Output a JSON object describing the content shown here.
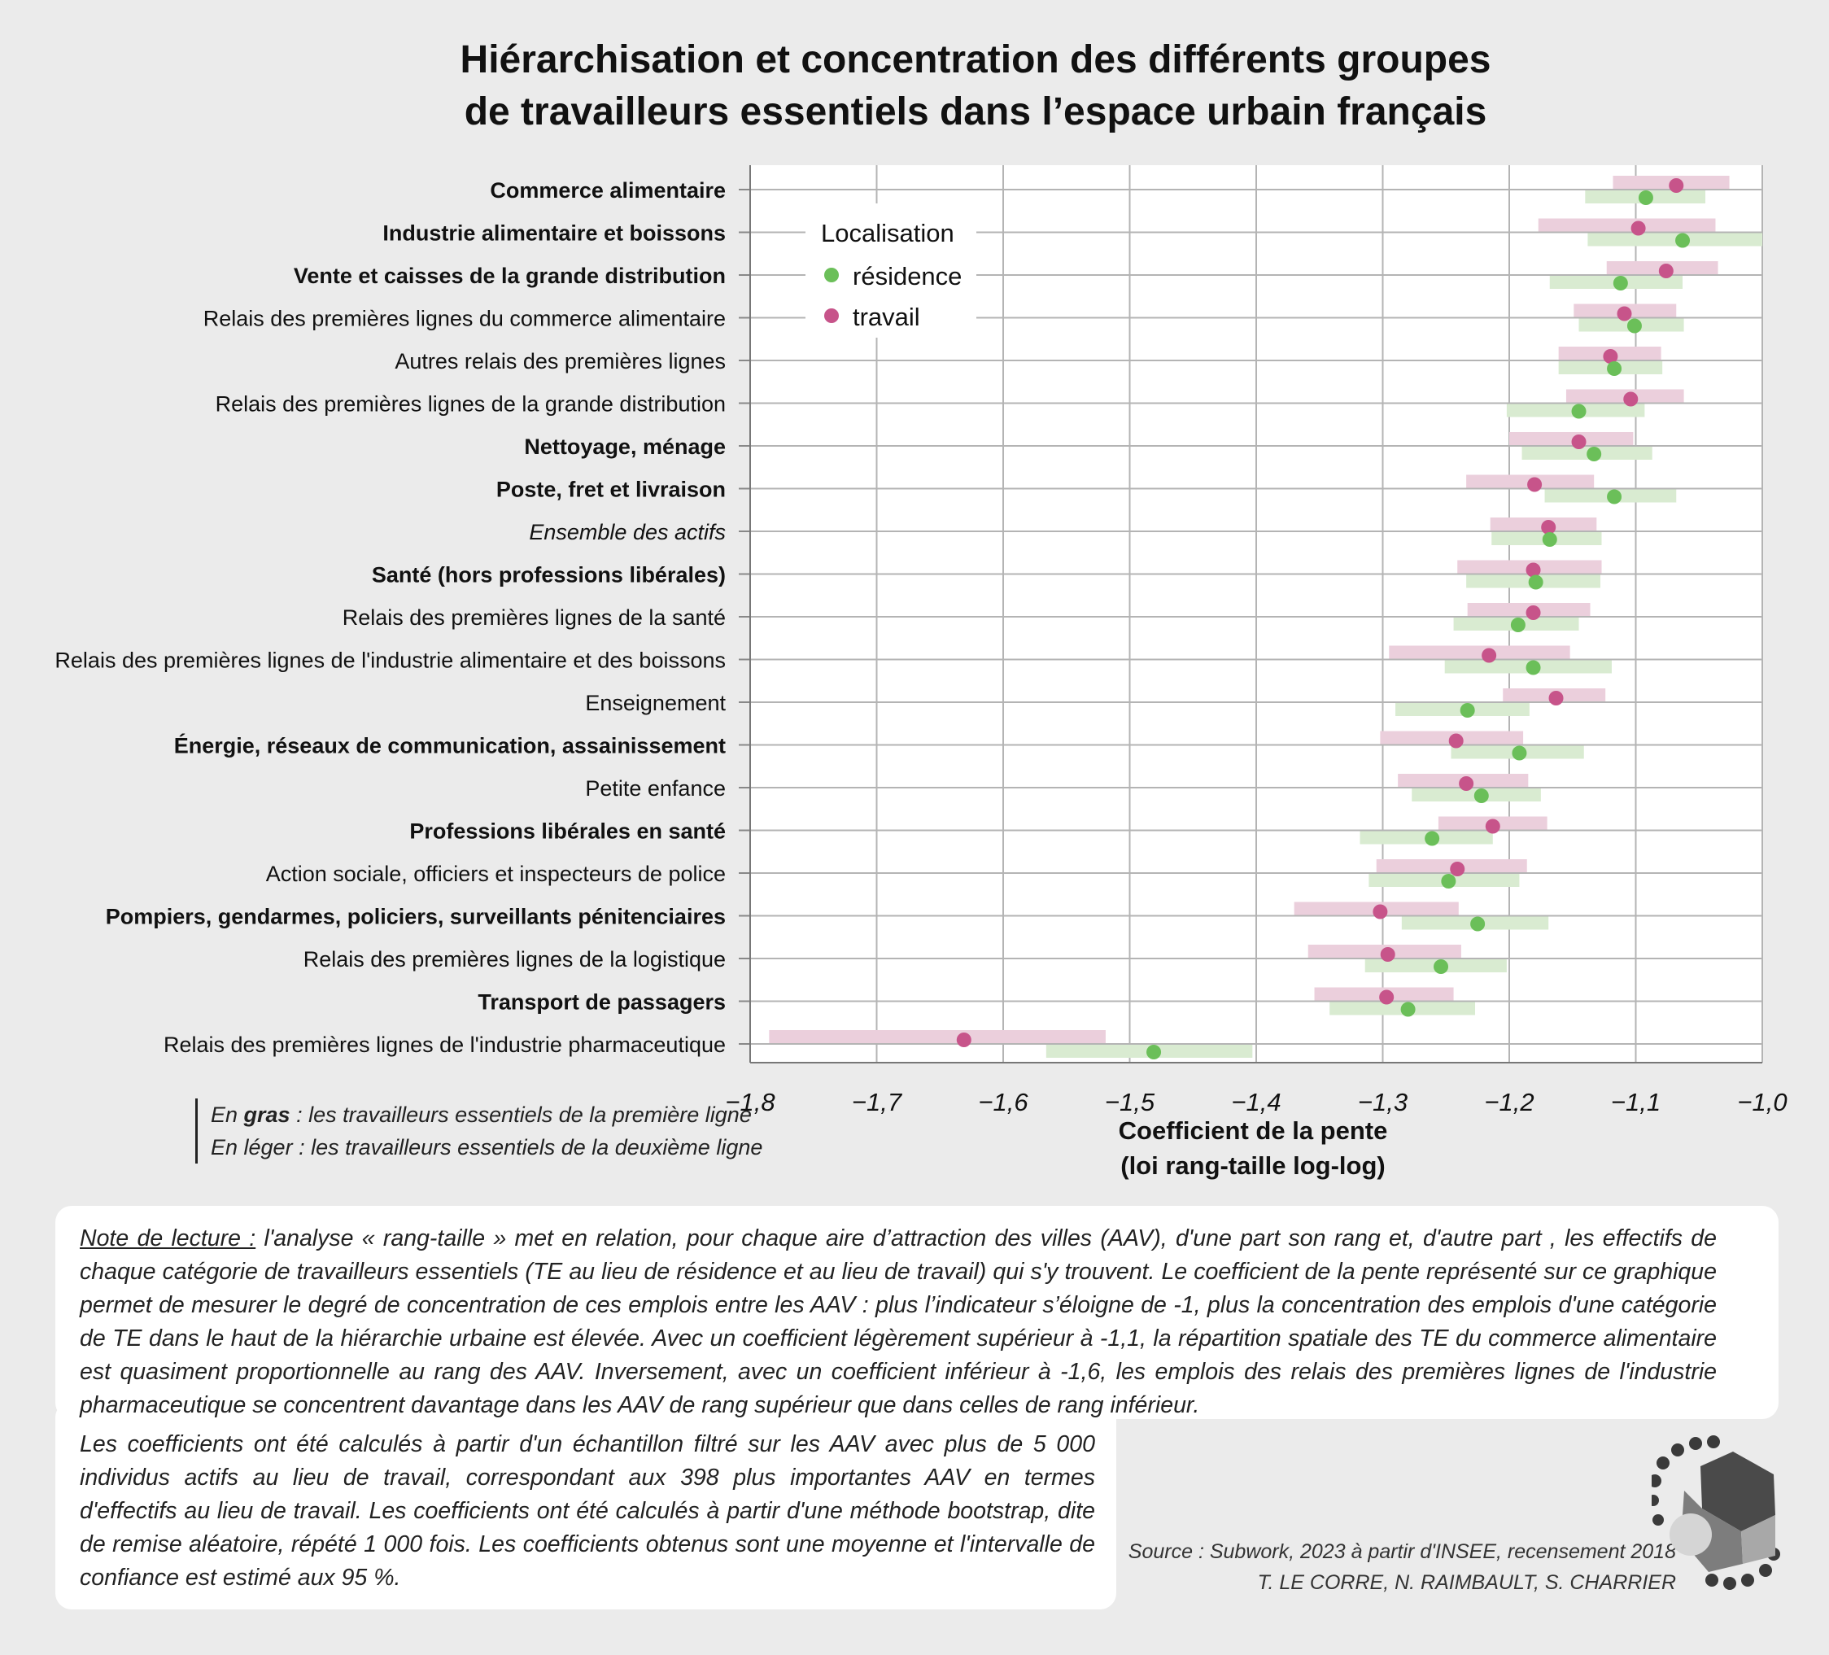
{
  "title": {
    "line1": "Hiérarchisation et concentration des différents groupes",
    "line2": "de travailleurs essentiels dans l’espace urbain français"
  },
  "legend": {
    "title": "Localisation",
    "items": [
      {
        "label": "résidence",
        "color": "#6bbf59"
      },
      {
        "label": "travail",
        "color": "#c7548a"
      }
    ]
  },
  "chart_data": {
    "type": "scatter",
    "title": "Hiérarchisation et concentration des différents groupes de travailleurs essentiels dans l’espace urbain français",
    "xlabel": "Coefficient de la pente (loi rang-taille log-log)",
    "xlabel_lines": [
      "Coefficient de la pente",
      "(loi rang-taille log-log)"
    ],
    "xlim": [
      -1.8,
      -1.0
    ],
    "xticks": [
      -1.8,
      -1.7,
      -1.6,
      -1.5,
      -1.4,
      -1.3,
      -1.2,
      -1.1,
      -1.0
    ],
    "xtick_labels": [
      "−1,8",
      "−1,7",
      "−1,6",
      "−1,5",
      "−1,4",
      "−1,3",
      "−1,2",
      "−1,1",
      "−1,0"
    ],
    "grid": true,
    "series": [
      {
        "name": "résidence",
        "color": "#6bbf59",
        "band_color": "#d9ebd1"
      },
      {
        "name": "travail",
        "color": "#c7548a",
        "band_color": "#ebcfdc"
      }
    ],
    "categories": [
      {
        "label": "Commerce alimentaire",
        "bold": true,
        "italic": false,
        "travail": {
          "mean": -1.068,
          "low": -1.118,
          "high": -1.026
        },
        "residence": {
          "mean": -1.092,
          "low": -1.14,
          "high": -1.045
        }
      },
      {
        "label": "Industrie alimentaire et boissons",
        "bold": true,
        "italic": false,
        "travail": {
          "mean": -1.098,
          "low": -1.177,
          "high": -1.037
        },
        "residence": {
          "mean": -1.063,
          "low": -1.138,
          "high": -1.0
        }
      },
      {
        "label": "Vente et caisses de la grande distribution",
        "bold": true,
        "italic": false,
        "travail": {
          "mean": -1.076,
          "low": -1.123,
          "high": -1.035
        },
        "residence": {
          "mean": -1.112,
          "low": -1.168,
          "high": -1.063
        }
      },
      {
        "label": "Relais des premières lignes du commerce alimentaire",
        "bold": false,
        "italic": false,
        "travail": {
          "mean": -1.109,
          "low": -1.149,
          "high": -1.068
        },
        "residence": {
          "mean": -1.101,
          "low": -1.145,
          "high": -1.062
        }
      },
      {
        "label": "Autres relais des premières lignes",
        "bold": false,
        "italic": false,
        "travail": {
          "mean": -1.12,
          "low": -1.161,
          "high": -1.08
        },
        "residence": {
          "mean": -1.117,
          "low": -1.161,
          "high": -1.079
        }
      },
      {
        "label": "Relais des premières lignes de la grande distribution",
        "bold": false,
        "italic": false,
        "travail": {
          "mean": -1.104,
          "low": -1.155,
          "high": -1.062
        },
        "residence": {
          "mean": -1.145,
          "low": -1.202,
          "high": -1.093
        }
      },
      {
        "label": "Nettoyage, ménage",
        "bold": true,
        "italic": false,
        "travail": {
          "mean": -1.145,
          "low": -1.2,
          "high": -1.102
        },
        "residence": {
          "mean": -1.133,
          "low": -1.19,
          "high": -1.087
        }
      },
      {
        "label": "Poste, fret et livraison",
        "bold": true,
        "italic": false,
        "travail": {
          "mean": -1.18,
          "low": -1.234,
          "high": -1.133
        },
        "residence": {
          "mean": -1.117,
          "low": -1.172,
          "high": -1.068
        }
      },
      {
        "label": "Ensemble des actifs",
        "bold": false,
        "italic": true,
        "travail": {
          "mean": -1.169,
          "low": -1.215,
          "high": -1.131
        },
        "residence": {
          "mean": -1.168,
          "low": -1.214,
          "high": -1.127
        }
      },
      {
        "label": "Santé (hors professions libérales)",
        "bold": true,
        "italic": false,
        "travail": {
          "mean": -1.181,
          "low": -1.241,
          "high": -1.127
        },
        "residence": {
          "mean": -1.179,
          "low": -1.234,
          "high": -1.128
        }
      },
      {
        "label": "Relais des premières lignes de la santé",
        "bold": false,
        "italic": false,
        "travail": {
          "mean": -1.181,
          "low": -1.233,
          "high": -1.136
        },
        "residence": {
          "mean": -1.193,
          "low": -1.244,
          "high": -1.145
        }
      },
      {
        "label": "Relais des premières lignes de l'industrie alimentaire et des boissons",
        "bold": false,
        "italic": false,
        "travail": {
          "mean": -1.216,
          "low": -1.295,
          "high": -1.152
        },
        "residence": {
          "mean": -1.181,
          "low": -1.251,
          "high": -1.119
        }
      },
      {
        "label": "Enseignement",
        "bold": false,
        "italic": false,
        "travail": {
          "mean": -1.163,
          "low": -1.205,
          "high": -1.124
        },
        "residence": {
          "mean": -1.233,
          "low": -1.29,
          "high": -1.184
        }
      },
      {
        "label": "Énergie, réseaux de communication, assainissement",
        "bold": true,
        "italic": false,
        "travail": {
          "mean": -1.242,
          "low": -1.302,
          "high": -1.189
        },
        "residence": {
          "mean": -1.192,
          "low": -1.246,
          "high": -1.141
        }
      },
      {
        "label": "Petite enfance",
        "bold": false,
        "italic": false,
        "travail": {
          "mean": -1.234,
          "low": -1.288,
          "high": -1.185
        },
        "residence": {
          "mean": -1.222,
          "low": -1.277,
          "high": -1.175
        }
      },
      {
        "label": "Professions libérales en santé",
        "bold": true,
        "italic": false,
        "travail": {
          "mean": -1.213,
          "low": -1.256,
          "high": -1.17
        },
        "residence": {
          "mean": -1.261,
          "low": -1.318,
          "high": -1.213
        }
      },
      {
        "label": "Action sociale, officiers et inspecteurs de police",
        "bold": false,
        "italic": false,
        "travail": {
          "mean": -1.241,
          "low": -1.305,
          "high": -1.186
        },
        "residence": {
          "mean": -1.248,
          "low": -1.311,
          "high": -1.192
        }
      },
      {
        "label": "Pompiers, gendarmes, policiers, surveillants pénitenciaires",
        "bold": true,
        "italic": false,
        "travail": {
          "mean": -1.302,
          "low": -1.37,
          "high": -1.24
        },
        "residence": {
          "mean": -1.225,
          "low": -1.285,
          "high": -1.169
        }
      },
      {
        "label": "Relais des premières lignes de la logistique",
        "bold": false,
        "italic": false,
        "travail": {
          "mean": -1.296,
          "low": -1.359,
          "high": -1.238
        },
        "residence": {
          "mean": -1.254,
          "low": -1.314,
          "high": -1.202
        }
      },
      {
        "label": "Transport de passagers",
        "bold": true,
        "italic": false,
        "travail": {
          "mean": -1.297,
          "low": -1.354,
          "high": -1.244
        },
        "residence": {
          "mean": -1.28,
          "low": -1.342,
          "high": -1.227
        }
      },
      {
        "label": "Relais des premières lignes de l'industrie pharmaceutique",
        "bold": false,
        "italic": false,
        "travail": {
          "mean": -1.631,
          "low": -1.785,
          "high": -1.519
        },
        "residence": {
          "mean": -1.481,
          "low": -1.566,
          "high": -1.403
        }
      }
    ]
  },
  "bold_note": {
    "line1_prefix": "En ",
    "line1_bold": "gras",
    "line1_rest": " : les travailleurs essentiels de la première ligne",
    "line2": "En léger : les travailleurs essentiels de la deuxième ligne"
  },
  "note1": {
    "lead": "Note de lecture :",
    "text": " l'analyse « rang-taille » met en relation, pour chaque aire d’attraction des villes (AAV), d'une part son rang et, d'autre part , les effectifs de chaque catégorie de travailleurs essentiels (TE au lieu de résidence et au lieu de travail) qui s'y trouvent. Le coefficient de la pente représenté sur ce graphique permet de mesurer le degré de concentration de ces emplois entre les AAV : plus l’indicateur s’éloigne de -1, plus la concentration des emplois d'une catégorie de TE dans le haut de la hiérarchie urbaine est élevée.  Avec un coefficient légèrement supérieur à -1,1, la répartition spatiale des TE du commerce alimentaire est quasiment proportionnelle au rang des AAV. Inversement, avec un coefficient inférieur à -1,6, les emplois des relais des premières lignes de l'industrie pharmaceutique se concentrent davantage dans les AAV de rang supérieur que dans celles de rang inférieur."
  },
  "note2": {
    "text": "Les coefficients ont été calculés à partir d'un échantillon filtré sur les AAV avec plus de 5 000 individus actifs au lieu de travail, correspondant aux 398 plus importantes AAV en termes d'effectifs au lieu de travail. Les coefficients ont été calculés à partir d'une méthode bootstrap, dite de remise aléatoire, répété 1 000 fois. Les coefficients obtenus sont une moyenne et l'intervalle de confiance est estimé aux 95 %."
  },
  "source": {
    "line1": "Source : Subwork, 2023 à partir d'INSEE, recensement 2018",
    "line2": "T. LE CORRE, N. RAIMBAULT, S. CHARRIER"
  }
}
